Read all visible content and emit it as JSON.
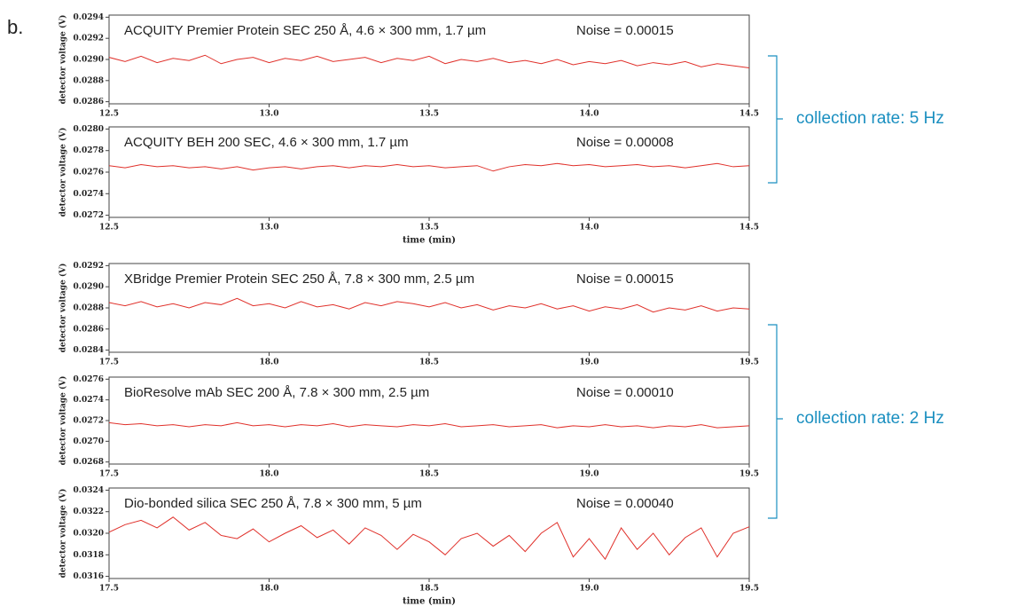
{
  "figure_label": "b.",
  "brackets": [
    {
      "label": "collection rate: 5 Hz"
    },
    {
      "label": "collection rate: 2 Hz"
    }
  ],
  "chart_data": [
    {
      "type": "line",
      "title": "ACQUITY Premier Protein SEC 250 Å, 4.6 × 300 mm, 1.7 µm",
      "annotation": "Noise = 0.00015",
      "y_label": "detector voltage (V)",
      "x": [
        12.5,
        12.55,
        12.6,
        12.65,
        12.7,
        12.75,
        12.8,
        12.85,
        12.9,
        12.95,
        13.0,
        13.05,
        13.1,
        13.15,
        13.2,
        13.25,
        13.3,
        13.35,
        13.4,
        13.45,
        13.5,
        13.55,
        13.6,
        13.65,
        13.7,
        13.75,
        13.8,
        13.85,
        13.9,
        13.95,
        14.0,
        14.05,
        14.1,
        14.15,
        14.2,
        14.25,
        14.3,
        14.35,
        14.4,
        14.45,
        14.5
      ],
      "series": [
        {
          "name": "ACQUITY Premier Protein SEC 250 Å",
          "color": "#e0302a",
          "values": [
            0.02902,
            0.02898,
            0.02903,
            0.02897,
            0.02901,
            0.02899,
            0.02904,
            0.02896,
            0.029,
            0.02902,
            0.02897,
            0.02901,
            0.02899,
            0.02903,
            0.02898,
            0.029,
            0.02902,
            0.02897,
            0.02901,
            0.02899,
            0.02903,
            0.02896,
            0.029,
            0.02898,
            0.02901,
            0.02897,
            0.02899,
            0.02896,
            0.029,
            0.02895,
            0.02898,
            0.02896,
            0.02899,
            0.02894,
            0.02897,
            0.02895,
            0.02898,
            0.02893,
            0.02896,
            0.02894,
            0.02892
          ]
        }
      ],
      "xlim": [
        12.5,
        14.5
      ],
      "xticks": [
        12.5,
        {
          "value": 13.0,
          "label": "13.0"
        },
        13.5,
        {
          "value": 14.0,
          "label": "14.0"
        },
        14.5
      ],
      "ylim": [
        0.02858,
        0.02942
      ],
      "yticks": [
        0.0286,
        0.0288,
        {
          "value": 0.029,
          "label": "0.0290"
        },
        0.0292,
        0.0294
      ]
    },
    {
      "type": "line",
      "title": "ACQUITY BEH 200 SEC, 4.6 × 300 mm, 1.7 µm",
      "annotation": "Noise = 0.00008",
      "y_label": "detector voltage (V)",
      "x_label": "time (min)",
      "x": [
        12.5,
        12.55,
        12.6,
        12.65,
        12.7,
        12.75,
        12.8,
        12.85,
        12.9,
        12.95,
        13.0,
        13.05,
        13.1,
        13.15,
        13.2,
        13.25,
        13.3,
        13.35,
        13.4,
        13.45,
        13.5,
        13.55,
        13.6,
        13.65,
        13.7,
        13.75,
        13.8,
        13.85,
        13.9,
        13.95,
        14.0,
        14.05,
        14.1,
        14.15,
        14.2,
        14.25,
        14.3,
        14.35,
        14.4,
        14.45,
        14.5
      ],
      "series": [
        {
          "name": "ACQUITY BEH 200 SEC",
          "color": "#e0302a",
          "values": [
            0.02766,
            0.02764,
            0.02767,
            0.02765,
            0.02766,
            0.02764,
            0.02765,
            0.02763,
            0.02765,
            0.02762,
            0.02764,
            0.02765,
            0.02763,
            0.02765,
            0.02766,
            0.02764,
            0.02766,
            0.02765,
            0.02767,
            0.02765,
            0.02766,
            0.02764,
            0.02765,
            0.02766,
            0.02761,
            0.02765,
            0.02767,
            0.02766,
            0.02768,
            0.02766,
            0.02767,
            0.02765,
            0.02766,
            0.02767,
            0.02765,
            0.02766,
            0.02764,
            0.02766,
            0.02768,
            0.02765,
            0.02766
          ]
        }
      ],
      "xlim": [
        12.5,
        14.5
      ],
      "xticks": [
        12.5,
        {
          "value": 13.0,
          "label": "13.0"
        },
        13.5,
        {
          "value": 14.0,
          "label": "14.0"
        },
        14.5
      ],
      "ylim": [
        0.02718,
        0.02802
      ],
      "yticks": [
        0.0272,
        0.0274,
        0.0276,
        0.0278,
        {
          "value": 0.028,
          "label": "0.0280"
        }
      ]
    },
    {
      "type": "line",
      "title": "XBridge Premier Protein SEC 250 Å, 7.8 × 300 mm, 2.5 µm",
      "annotation": "Noise = 0.00015",
      "y_label": "detector voltage (V)",
      "x": [
        17.5,
        17.55,
        17.6,
        17.65,
        17.7,
        17.75,
        17.8,
        17.85,
        17.9,
        17.95,
        18.0,
        18.05,
        18.1,
        18.15,
        18.2,
        18.25,
        18.3,
        18.35,
        18.4,
        18.45,
        18.5,
        18.55,
        18.6,
        18.65,
        18.7,
        18.75,
        18.8,
        18.85,
        18.9,
        18.95,
        19.0,
        19.05,
        19.1,
        19.15,
        19.2,
        19.25,
        19.3,
        19.35,
        19.4,
        19.45,
        19.5
      ],
      "series": [
        {
          "name": "XBridge Premier Protein SEC 250 Å",
          "color": "#e0302a",
          "values": [
            0.02885,
            0.02882,
            0.02886,
            0.02881,
            0.02884,
            0.0288,
            0.02885,
            0.02883,
            0.02889,
            0.02882,
            0.02884,
            0.0288,
            0.02886,
            0.02881,
            0.02883,
            0.02879,
            0.02885,
            0.02882,
            0.02886,
            0.02884,
            0.02881,
            0.02885,
            0.0288,
            0.02883,
            0.02878,
            0.02882,
            0.0288,
            0.02884,
            0.02879,
            0.02882,
            0.02877,
            0.02881,
            0.02879,
            0.02883,
            0.02876,
            0.0288,
            0.02878,
            0.02882,
            0.02877,
            0.0288,
            0.02879
          ]
        }
      ],
      "xlim": [
        17.5,
        19.5
      ],
      "xticks": [
        17.5,
        {
          "value": 18.0,
          "label": "18.0"
        },
        18.5,
        {
          "value": 19.0,
          "label": "19.0"
        },
        19.5
      ],
      "ylim": [
        0.02838,
        0.02922
      ],
      "yticks": [
        0.0284,
        0.0286,
        0.0288,
        {
          "value": 0.029,
          "label": "0.0290"
        },
        0.0292
      ]
    },
    {
      "type": "line",
      "title": "BioResolve mAb SEC 200 Å, 7.8 × 300 mm, 2.5 µm",
      "annotation": "Noise = 0.00010",
      "y_label": "detector voltage (V)",
      "x": [
        17.5,
        17.55,
        17.6,
        17.65,
        17.7,
        17.75,
        17.8,
        17.85,
        17.9,
        17.95,
        18.0,
        18.05,
        18.1,
        18.15,
        18.2,
        18.25,
        18.3,
        18.35,
        18.4,
        18.45,
        18.5,
        18.55,
        18.6,
        18.65,
        18.7,
        18.75,
        18.8,
        18.85,
        18.9,
        18.95,
        19.0,
        19.05,
        19.1,
        19.15,
        19.2,
        19.25,
        19.3,
        19.35,
        19.4,
        19.45,
        19.5
      ],
      "series": [
        {
          "name": "BioResolve mAb SEC 200 Å",
          "color": "#e0302a",
          "values": [
            0.02718,
            0.02716,
            0.02717,
            0.02715,
            0.02716,
            0.02714,
            0.02716,
            0.02715,
            0.02718,
            0.02715,
            0.02716,
            0.02714,
            0.02716,
            0.02715,
            0.02717,
            0.02714,
            0.02716,
            0.02715,
            0.02714,
            0.02716,
            0.02715,
            0.02717,
            0.02714,
            0.02715,
            0.02716,
            0.02714,
            0.02715,
            0.02716,
            0.02713,
            0.02715,
            0.02714,
            0.02716,
            0.02714,
            0.02715,
            0.02713,
            0.02715,
            0.02714,
            0.02716,
            0.02713,
            0.02714,
            0.02715
          ]
        }
      ],
      "xlim": [
        17.5,
        19.5
      ],
      "xticks": [
        17.5,
        {
          "value": 18.0,
          "label": "18.0"
        },
        18.5,
        {
          "value": 19.0,
          "label": "19.0"
        },
        19.5
      ],
      "ylim": [
        0.02678,
        0.02762
      ],
      "yticks": [
        0.0268,
        {
          "value": 0.027,
          "label": "0.0270"
        },
        0.0272,
        0.0274,
        0.0276
      ]
    },
    {
      "type": "line",
      "title": "Dio-bonded silica SEC 250 Å, 7.8 × 300 mm, 5 µm",
      "annotation": "Noise = 0.00040",
      "y_label": "detector voltage (V)",
      "x_label": "time (min)",
      "x": [
        17.5,
        17.55,
        17.6,
        17.65,
        17.7,
        17.75,
        17.8,
        17.85,
        17.9,
        17.95,
        18.0,
        18.05,
        18.1,
        18.15,
        18.2,
        18.25,
        18.3,
        18.35,
        18.4,
        18.45,
        18.5,
        18.55,
        18.6,
        18.65,
        18.7,
        18.75,
        18.8,
        18.85,
        18.9,
        18.95,
        19.0,
        19.05,
        19.1,
        19.15,
        19.2,
        19.25,
        19.3,
        19.35,
        19.4,
        19.45,
        19.5
      ],
      "series": [
        {
          "name": "Dio-bonded silica SEC 250 Å",
          "color": "#e0302a",
          "values": [
            0.03201,
            0.03208,
            0.03212,
            0.03205,
            0.03215,
            0.03203,
            0.0321,
            0.03198,
            0.03195,
            0.03204,
            0.03192,
            0.032,
            0.03207,
            0.03196,
            0.03203,
            0.0319,
            0.03205,
            0.03198,
            0.03185,
            0.03199,
            0.03192,
            0.0318,
            0.03195,
            0.032,
            0.03188,
            0.03198,
            0.03183,
            0.032,
            0.0321,
            0.03178,
            0.03195,
            0.03176,
            0.03205,
            0.03185,
            0.032,
            0.0318,
            0.03196,
            0.03205,
            0.03178,
            0.032,
            0.03206
          ]
        }
      ],
      "xlim": [
        17.5,
        19.5
      ],
      "xticks": [
        17.5,
        {
          "value": 18.0,
          "label": "18.0"
        },
        18.5,
        {
          "value": 19.0,
          "label": "19.0"
        },
        19.5
      ],
      "ylim": [
        0.03158,
        0.03242
      ],
      "yticks": [
        0.0316,
        0.0318,
        {
          "value": 0.032,
          "label": "0.0320"
        },
        0.0322,
        0.0324
      ]
    }
  ]
}
